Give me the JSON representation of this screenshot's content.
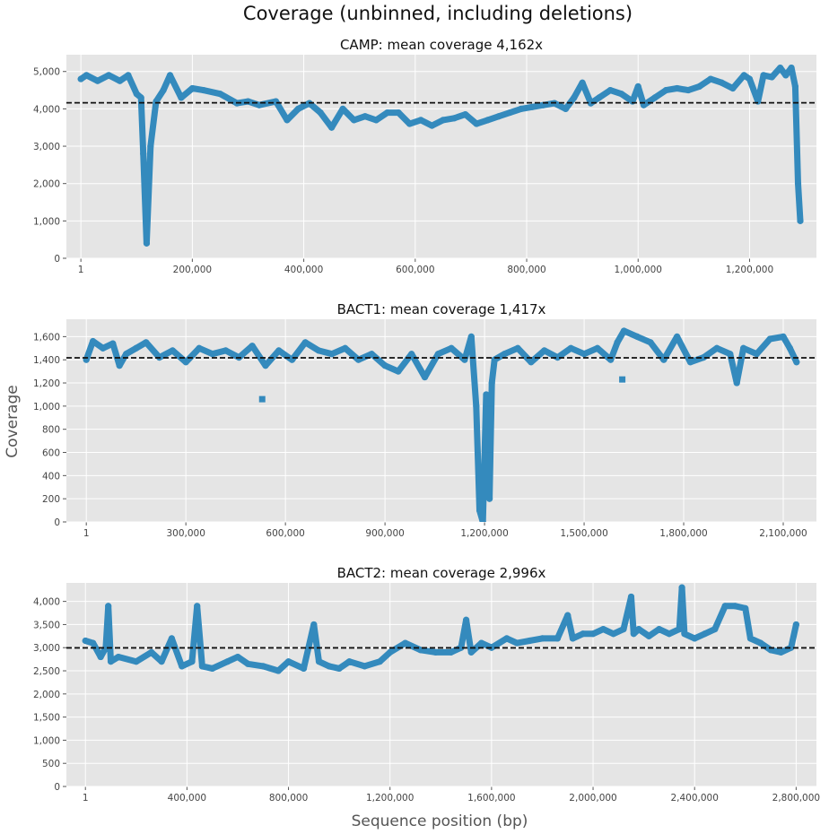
{
  "figure": {
    "title": "Coverage (unbinned, including deletions)",
    "ylabel": "Coverage",
    "xlabel": "Sequence position (bp)",
    "colors": {
      "panel_bg": "#e5e5e5",
      "grid": "#ffffff",
      "series": "#348abd",
      "mean_line": "#111111"
    }
  },
  "chart_data": [
    {
      "type": "scatter",
      "title": "CAMP: mean coverage 4,162x",
      "mean": 4162,
      "xlim": [
        -26000,
        1320000
      ],
      "ylim": [
        0,
        5450
      ],
      "xticks": [
        1,
        200000,
        400000,
        600000,
        800000,
        1000000,
        1200000
      ],
      "xtick_labels": [
        "1",
        "200,000",
        "400,000",
        "600,000",
        "800,000",
        "1,000,000",
        "1,200,000"
      ],
      "yticks": [
        0,
        1000,
        2000,
        3000,
        4000,
        5000
      ],
      "ytick_labels": [
        "0",
        "1,000",
        "2,000",
        "3,000",
        "4,000",
        "5,000"
      ],
      "grid": true,
      "series": [
        {
          "x": [
            1,
            10000,
            30000,
            50000,
            70000,
            85000,
            100000,
            108000,
            112000,
            118000,
            125000,
            135000,
            148000,
            160000,
            180000,
            200000,
            220000,
            250000,
            280000,
            300000,
            320000,
            350000,
            370000,
            390000,
            410000,
            430000,
            450000,
            470000,
            490000,
            510000,
            530000,
            550000,
            570000,
            590000,
            610000,
            630000,
            650000,
            670000,
            690000,
            710000,
            730000,
            750000,
            770000,
            790000,
            810000,
            830000,
            850000,
            870000,
            885000,
            900000,
            915000,
            930000,
            950000,
            970000,
            990000,
            1000000,
            1010000,
            1030000,
            1050000,
            1070000,
            1090000,
            1110000,
            1130000,
            1150000,
            1170000,
            1190000,
            1200000,
            1215000,
            1225000,
            1240000,
            1255000,
            1265000,
            1275000,
            1282000,
            1287000,
            1291000
          ],
          "y": [
            4800,
            4900,
            4750,
            4900,
            4750,
            4900,
            4400,
            4300,
            2800,
            400,
            3000,
            4200,
            4500,
            4900,
            4300,
            4550,
            4500,
            4400,
            4150,
            4200,
            4100,
            4200,
            3700,
            4000,
            4150,
            3900,
            3500,
            4000,
            3700,
            3800,
            3700,
            3900,
            3900,
            3600,
            3700,
            3550,
            3700,
            3750,
            3850,
            3600,
            3700,
            3800,
            3900,
            4000,
            4050,
            4100,
            4150,
            4000,
            4300,
            4700,
            4150,
            4300,
            4500,
            4400,
            4200,
            4600,
            4100,
            4300,
            4500,
            4550,
            4500,
            4600,
            4800,
            4700,
            4550,
            4900,
            4800,
            4200,
            4900,
            4850,
            5100,
            4900,
            5100,
            4600,
            2000,
            1000
          ]
        }
      ]
    },
    {
      "type": "scatter",
      "title": "BACT1: mean coverage 1,417x",
      "mean": 1417,
      "xlim": [
        -60000,
        2200000
      ],
      "ylim": [
        0,
        1750
      ],
      "xticks": [
        1,
        300000,
        600000,
        900000,
        1200000,
        1500000,
        1800000,
        2100000
      ],
      "xtick_labels": [
        "1",
        "300,000",
        "600,000",
        "900,000",
        "1,200,000",
        "1,500,000",
        "1,800,000",
        "2,100,000"
      ],
      "yticks": [
        0,
        200,
        400,
        600,
        800,
        1000,
        1200,
        1400,
        1600
      ],
      "ytick_labels": [
        "0",
        "200",
        "400",
        "600",
        "800",
        "1,000",
        "1,200",
        "1,400",
        "1,600"
      ],
      "grid": true,
      "series": [
        {
          "x": [
            1,
            20000,
            50000,
            80000,
            100000,
            120000,
            150000,
            180000,
            220000,
            260000,
            300000,
            340000,
            380000,
            420000,
            460000,
            500000,
            540000,
            580000,
            620000,
            660000,
            700000,
            740000,
            780000,
            820000,
            860000,
            900000,
            940000,
            980000,
            1020000,
            1060000,
            1100000,
            1140000,
            1160000,
            1175000,
            1185000,
            1195000,
            1205000,
            1215000,
            1222000,
            1230000,
            1260000,
            1300000,
            1340000,
            1380000,
            1420000,
            1460000,
            1500000,
            1540000,
            1580000,
            1600000,
            1620000,
            1660000,
            1700000,
            1740000,
            1780000,
            1820000,
            1860000,
            1900000,
            1940000,
            1960000,
            1980000,
            2020000,
            2060000,
            2100000,
            2120000,
            2140000
          ],
          "y": [
            1400,
            1560,
            1500,
            1540,
            1350,
            1450,
            1500,
            1550,
            1420,
            1480,
            1380,
            1500,
            1450,
            1480,
            1420,
            1520,
            1350,
            1480,
            1400,
            1550,
            1480,
            1450,
            1500,
            1400,
            1450,
            1350,
            1300,
            1450,
            1250,
            1450,
            1500,
            1400,
            1600,
            1000,
            100,
            0,
            1100,
            200,
            1200,
            1400,
            1450,
            1500,
            1380,
            1480,
            1420,
            1500,
            1450,
            1500,
            1400,
            1550,
            1650,
            1600,
            1550,
            1400,
            1600,
            1380,
            1420,
            1500,
            1450,
            1200,
            1500,
            1450,
            1580,
            1600,
            1500,
            1380
          ],
          "outliers": {
            "x": [
              530000,
              1615000
            ],
            "y": [
              1060,
              1230
            ]
          }
        }
      ]
    },
    {
      "type": "scatter",
      "title": "BACT2: mean coverage 2,996x",
      "mean": 2996,
      "xlim": [
        -75000,
        2880000
      ],
      "ylim": [
        0,
        4400
      ],
      "xticks": [
        1,
        400000,
        800000,
        1200000,
        1600000,
        2000000,
        2400000,
        2800000
      ],
      "xtick_labels": [
        "1",
        "400,000",
        "800,000",
        "1,200,000",
        "1,600,000",
        "2,000,000",
        "2,400,000",
        "2,800,000"
      ],
      "yticks": [
        0,
        500,
        1000,
        1500,
        2000,
        2500,
        3000,
        3500,
        4000
      ],
      "ytick_labels": [
        "0",
        "500",
        "1,000",
        "1,500",
        "2,000",
        "2,500",
        "3,000",
        "3,500",
        "4,000"
      ],
      "grid": true,
      "series": [
        {
          "x": [
            1,
            30000,
            60000,
            80000,
            90000,
            100000,
            130000,
            200000,
            260000,
            300000,
            340000,
            380000,
            420000,
            440000,
            460000,
            500000,
            560000,
            600000,
            640000,
            700000,
            760000,
            800000,
            860000,
            900000,
            920000,
            960000,
            1000000,
            1040000,
            1100000,
            1160000,
            1200000,
            1260000,
            1320000,
            1380000,
            1440000,
            1480000,
            1500000,
            1520000,
            1560000,
            1600000,
            1660000,
            1700000,
            1750000,
            1800000,
            1860000,
            1900000,
            1920000,
            1960000,
            2000000,
            2040000,
            2080000,
            2120000,
            2150000,
            2160000,
            2180000,
            2220000,
            2260000,
            2300000,
            2340000,
            2350000,
            2360000,
            2400000,
            2440000,
            2480000,
            2520000,
            2560000,
            2600000,
            2620000,
            2660000,
            2700000,
            2740000,
            2780000,
            2800000
          ],
          "y": [
            3150,
            3100,
            2800,
            3000,
            3900,
            2700,
            2800,
            2700,
            2900,
            2700,
            3200,
            2600,
            2700,
            3900,
            2600,
            2550,
            2700,
            2800,
            2650,
            2600,
            2500,
            2700,
            2550,
            3500,
            2700,
            2600,
            2550,
            2700,
            2600,
            2700,
            2900,
            3100,
            2950,
            2900,
            2900,
            3000,
            3600,
            2900,
            3100,
            3000,
            3200,
            3100,
            3150,
            3200,
            3200,
            3700,
            3200,
            3300,
            3300,
            3400,
            3300,
            3400,
            4100,
            3300,
            3400,
            3250,
            3400,
            3300,
            3400,
            4300,
            3300,
            3200,
            3300,
            3400,
            3900,
            3900,
            3850,
            3200,
            3100,
            2950,
            2900,
            3000,
            3500
          ]
        }
      ]
    }
  ]
}
